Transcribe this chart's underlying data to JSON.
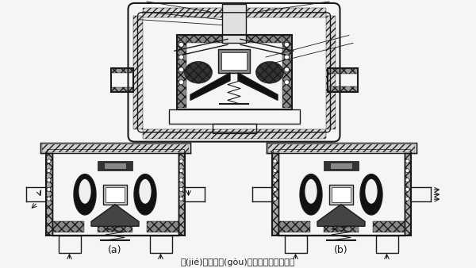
{
  "title": "節(jié)溫器的構(gòu)造及工作原理示意圖",
  "label_a": "(a)",
  "label_b": "(b)",
  "bg_color": "#f5f5f5",
  "line_color": "#1a1a1a",
  "title_fontsize": 8,
  "label_fontsize": 9
}
